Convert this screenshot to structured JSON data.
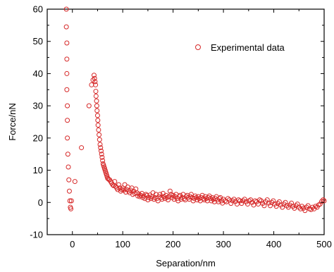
{
  "chart_data": {
    "type": "scatter",
    "title": "",
    "xlabel": "Separation/nm",
    "ylabel": "Force/nN",
    "xlim": [
      -50,
      500
    ],
    "ylim": [
      -10,
      60
    ],
    "xticks": [
      0,
      100,
      200,
      300,
      400,
      500
    ],
    "yticks": [
      -10,
      0,
      10,
      20,
      30,
      40,
      50,
      60
    ],
    "grid": false,
    "legend": {
      "position": "top-right",
      "entries": [
        "Experimental data"
      ]
    },
    "colors": {
      "marker": "#d62828"
    },
    "series": [
      {
        "name": "Experimental data",
        "marker": "open-circle",
        "points": [
          [
            -12,
            60
          ],
          [
            -12,
            54.5
          ],
          [
            -11,
            49.5
          ],
          [
            -11,
            44.5
          ],
          [
            -11,
            40
          ],
          [
            -11,
            35
          ],
          [
            -10,
            30
          ],
          [
            -10,
            25.5
          ],
          [
            -10,
            20
          ],
          [
            -9,
            15
          ],
          [
            -8,
            11
          ],
          [
            -7,
            7
          ],
          [
            -6,
            3.5
          ],
          [
            -5,
            0.5
          ],
          [
            -4,
            -1.5
          ],
          [
            -3,
            -2
          ],
          [
            -2,
            0.5
          ],
          [
            5,
            6.5
          ],
          [
            18,
            17
          ],
          [
            33,
            30
          ],
          [
            38,
            36.5
          ],
          [
            41,
            38
          ],
          [
            43,
            39.5
          ],
          [
            44,
            38.5
          ],
          [
            45,
            37.5
          ],
          [
            46,
            36.5
          ],
          [
            46.5,
            34.5
          ],
          [
            47,
            33
          ],
          [
            48,
            31.5
          ],
          [
            48.5,
            30
          ],
          [
            49,
            28.5
          ],
          [
            50,
            27
          ],
          [
            50.5,
            25.5
          ],
          [
            51,
            24
          ],
          [
            52,
            22.5
          ],
          [
            53,
            21
          ],
          [
            54,
            19.5
          ],
          [
            55,
            18
          ],
          [
            56,
            17
          ],
          [
            57,
            16
          ],
          [
            58,
            15
          ],
          [
            59,
            14
          ],
          [
            60,
            13
          ],
          [
            61,
            12
          ],
          [
            62,
            11.5
          ],
          [
            63,
            11
          ],
          [
            64,
            10.5
          ],
          [
            65,
            10
          ],
          [
            66,
            9.5
          ],
          [
            67,
            9
          ],
          [
            68,
            8.5
          ],
          [
            69,
            8
          ],
          [
            70,
            7.5
          ],
          [
            72,
            7.2
          ],
          [
            74,
            7
          ],
          [
            76,
            6.5
          ],
          [
            78,
            6
          ],
          [
            80,
            5.5
          ],
          [
            82,
            5.2
          ],
          [
            84,
            6.5
          ],
          [
            86,
            5
          ],
          [
            88,
            4.5
          ],
          [
            90,
            4
          ],
          [
            92,
            5.5
          ],
          [
            94,
            4.5
          ],
          [
            96,
            3.5
          ],
          [
            98,
            4
          ],
          [
            100,
            4.5
          ],
          [
            102,
            3.8
          ],
          [
            104,
            5.5
          ],
          [
            106,
            3.2
          ],
          [
            108,
            4
          ],
          [
            110,
            4.8
          ],
          [
            112,
            3.5
          ],
          [
            114,
            3
          ],
          [
            116,
            3.8
          ],
          [
            118,
            4.5
          ],
          [
            120,
            2.5
          ],
          [
            122,
            3.5
          ],
          [
            124,
            2.8
          ],
          [
            126,
            4.2
          ],
          [
            128,
            3
          ],
          [
            130,
            2
          ],
          [
            132,
            2.6
          ],
          [
            134,
            1.8
          ],
          [
            136,
            2.2
          ],
          [
            138,
            2.8
          ],
          [
            140,
            1.5
          ],
          [
            142,
            2
          ],
          [
            144,
            1.2
          ],
          [
            146,
            2.5
          ],
          [
            148,
            2.2
          ],
          [
            150,
            0.8
          ],
          [
            152,
            1.5
          ],
          [
            154,
            2.3
          ],
          [
            156,
            1.2
          ],
          [
            158,
            1.8
          ],
          [
            160,
            3
          ],
          [
            162,
            1
          ],
          [
            164,
            1.5
          ],
          [
            166,
            2.5
          ],
          [
            168,
            1.2
          ],
          [
            170,
            0.5
          ],
          [
            172,
            1.8
          ],
          [
            174,
            2.5
          ],
          [
            176,
            1.5
          ],
          [
            178,
            1
          ],
          [
            180,
            2.8
          ],
          [
            182,
            1.8
          ],
          [
            184,
            1.2
          ],
          [
            186,
            2.2
          ],
          [
            188,
            1.5
          ],
          [
            190,
            0.8
          ],
          [
            192,
            1.8
          ],
          [
            194,
            3.5
          ],
          [
            196,
            2.5
          ],
          [
            198,
            1.5
          ],
          [
            200,
            2.2
          ],
          [
            202,
            1
          ],
          [
            204,
            1.8
          ],
          [
            206,
            2.5
          ],
          [
            208,
            1.2
          ],
          [
            210,
            0.5
          ],
          [
            212,
            1.8
          ],
          [
            214,
            2.2
          ],
          [
            216,
            1
          ],
          [
            218,
            1.5
          ],
          [
            220,
            2.5
          ],
          [
            222,
            1.2
          ],
          [
            224,
            0.8
          ],
          [
            226,
            1.8
          ],
          [
            228,
            2.2
          ],
          [
            230,
            1.5
          ],
          [
            232,
            1
          ],
          [
            234,
            1.8
          ],
          [
            236,
            2.5
          ],
          [
            238,
            1.5
          ],
          [
            240,
            0.5
          ],
          [
            242,
            1.2
          ],
          [
            244,
            2
          ],
          [
            246,
            1.5
          ],
          [
            248,
            0.8
          ],
          [
            250,
            1.8
          ],
          [
            252,
            1.2
          ],
          [
            254,
            0.5
          ],
          [
            256,
            1.5
          ],
          [
            258,
            2.2
          ],
          [
            260,
            1.2
          ],
          [
            262,
            0.8
          ],
          [
            264,
            1.8
          ],
          [
            266,
            1.2
          ],
          [
            268,
            0.5
          ],
          [
            270,
            1.5
          ],
          [
            272,
            2
          ],
          [
            274,
            1.2
          ],
          [
            276,
            0.5
          ],
          [
            278,
            1.5
          ],
          [
            280,
            1
          ],
          [
            282,
            0.2
          ],
          [
            284,
            1.2
          ],
          [
            286,
            1.8
          ],
          [
            288,
            0.8
          ],
          [
            290,
            0.2
          ],
          [
            292,
            1.2
          ],
          [
            294,
            1.5
          ],
          [
            296,
            0.5
          ],
          [
            298,
            -0.2
          ],
          [
            300,
            1
          ],
          [
            303,
            0.5
          ],
          [
            306,
            0.2
          ],
          [
            309,
            1.2
          ],
          [
            312,
            0.8
          ],
          [
            315,
            -0.3
          ],
          [
            318,
            0.5
          ],
          [
            321,
            1
          ],
          [
            324,
            0.3
          ],
          [
            327,
            -0.5
          ],
          [
            330,
            0.8
          ],
          [
            333,
            0.5
          ],
          [
            336,
            -0.3
          ],
          [
            339,
            0.5
          ],
          [
            342,
            1
          ],
          [
            345,
            0.2
          ],
          [
            348,
            -0.5
          ],
          [
            351,
            0.5
          ],
          [
            354,
            0.8
          ],
          [
            357,
            0
          ],
          [
            360,
            -0.8
          ],
          [
            363,
            0.5
          ],
          [
            366,
            0.2
          ],
          [
            369,
            -0.5
          ],
          [
            372,
            0.8
          ],
          [
            375,
            0.5
          ],
          [
            378,
            -0.3
          ],
          [
            381,
            -1
          ],
          [
            384,
            0.2
          ],
          [
            387,
            0.8
          ],
          [
            390,
            -0.2
          ],
          [
            393,
            -1
          ],
          [
            396,
            0
          ],
          [
            399,
            0.5
          ],
          [
            402,
            -0.5
          ],
          [
            405,
            -1.2
          ],
          [
            408,
            -0.3
          ],
          [
            411,
            0.2
          ],
          [
            414,
            -0.8
          ],
          [
            417,
            -1.5
          ],
          [
            420,
            -0.5
          ],
          [
            423,
            0
          ],
          [
            426,
            -1
          ],
          [
            429,
            -1.5
          ],
          [
            432,
            -0.8
          ],
          [
            435,
            -0.2
          ],
          [
            438,
            -1.2
          ],
          [
            441,
            -1.8
          ],
          [
            444,
            -1
          ],
          [
            447,
            -0.5
          ],
          [
            450,
            -1.5
          ],
          [
            453,
            -2
          ],
          [
            456,
            -1.2
          ],
          [
            459,
            -1.8
          ],
          [
            462,
            -2.5
          ],
          [
            465,
            -1.5
          ],
          [
            468,
            -1
          ],
          [
            471,
            -2
          ],
          [
            474,
            -2.2
          ],
          [
            477,
            -1.5
          ],
          [
            480,
            -2
          ],
          [
            483,
            -1.2
          ],
          [
            486,
            -1.5
          ],
          [
            489,
            -0.8
          ],
          [
            492,
            -0.5
          ],
          [
            495,
            0.3
          ],
          [
            498,
            0.8
          ],
          [
            500,
            0.5
          ]
        ]
      }
    ]
  }
}
